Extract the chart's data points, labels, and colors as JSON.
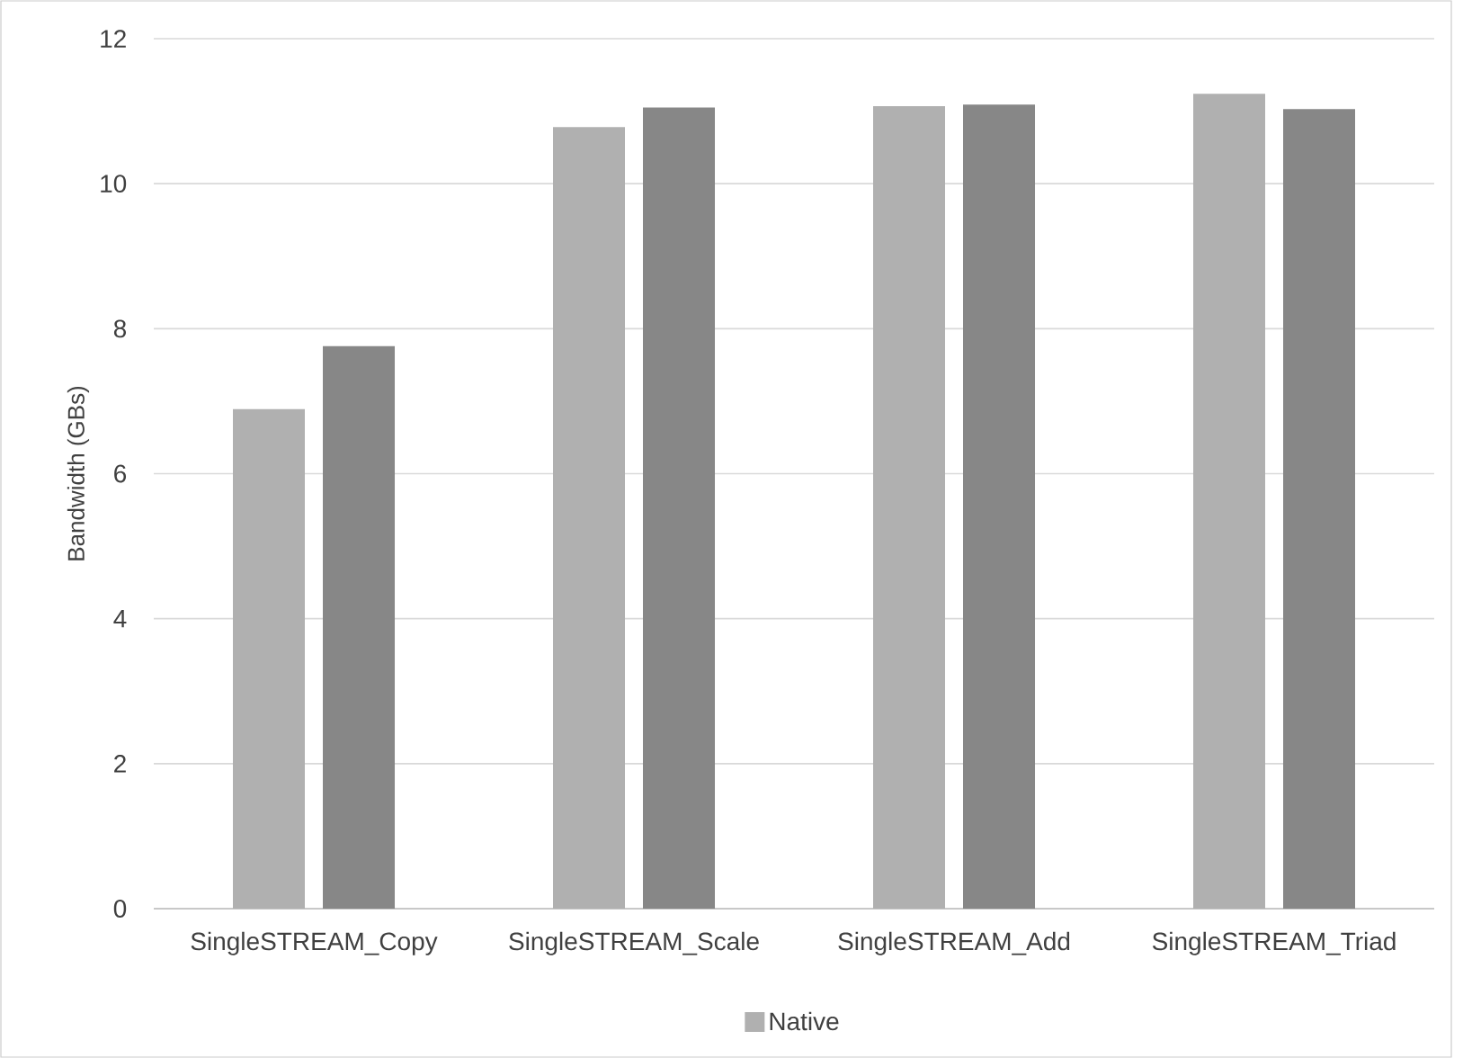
{
  "chart_data": {
    "type": "bar",
    "ylabel": "Bandwidth (GBs)",
    "categories": [
      "SingleSTREAM_Copy",
      "SingleSTREAM_Scale",
      "SingleSTREAM_Add",
      "SingleSTREAM_Triad"
    ],
    "series": [
      {
        "name": "Native",
        "color": "#b0b0b0",
        "values": [
          6.89,
          10.78,
          11.07,
          11.24
        ]
      },
      {
        "color": "#878787",
        "values": [
          7.76,
          11.05,
          11.09,
          11.03
        ]
      }
    ],
    "ylim": [
      0,
      12
    ],
    "yticks": [
      0,
      2,
      4,
      6,
      8,
      10,
      12
    ],
    "grid": "y",
    "legend": "bottom"
  }
}
